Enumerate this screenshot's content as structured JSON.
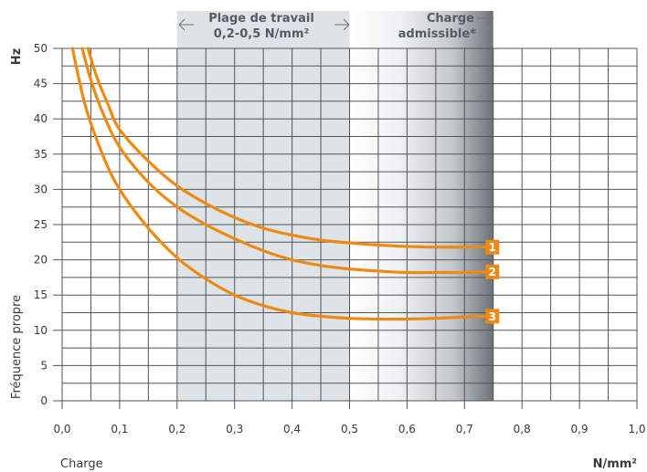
{
  "chart_data": {
    "type": "line",
    "xlabel": "Charge",
    "xunit": "N/mm²",
    "ylabel": "Fréquence propre",
    "yunit": "Hz",
    "xlim": [
      0,
      1.0
    ],
    "ylim": [
      0,
      50
    ],
    "x_ticks": [
      0,
      0.1,
      0.2,
      0.3,
      0.4,
      0.5,
      0.6,
      0.7,
      0.8,
      0.9,
      1.0
    ],
    "x_tick_labels": [
      "0,0",
      "0,1",
      "0,2",
      "0,3",
      "0,4",
      "0,5",
      "0,6",
      "0,7",
      "0,8",
      "0,9",
      "1,0"
    ],
    "y_ticks": [
      0,
      5,
      10,
      15,
      20,
      25,
      30,
      35,
      40,
      45,
      50
    ],
    "y_tick_labels": [
      "0",
      "5",
      "10",
      "15",
      "20",
      "25",
      "30",
      "35",
      "40",
      "45",
      "50"
    ],
    "grid": true,
    "working_range": {
      "from": 0.2,
      "to": 0.5,
      "label_line1": "Plage de travail",
      "label_line2": "0,2-0,5 N/mm²"
    },
    "admissible_load": {
      "from": 0.5,
      "to": 0.75,
      "label_line1": "Charge",
      "label_line2": "admissible*"
    },
    "series": [
      {
        "name": "1",
        "x": [
          0.045,
          0.06,
          0.08,
          0.1,
          0.15,
          0.2,
          0.25,
          0.3,
          0.35,
          0.4,
          0.45,
          0.5,
          0.55,
          0.6,
          0.65,
          0.7,
          0.735
        ],
        "y": [
          50,
          46,
          42,
          38.5,
          34,
          30.5,
          28,
          26,
          24.5,
          23.5,
          22.8,
          22.4,
          22.1,
          21.9,
          21.8,
          21.8,
          21.8
        ]
      },
      {
        "name": "2",
        "x": [
          0.035,
          0.05,
          0.07,
          0.1,
          0.15,
          0.2,
          0.25,
          0.3,
          0.35,
          0.4,
          0.45,
          0.5,
          0.55,
          0.6,
          0.65,
          0.7,
          0.735
        ],
        "y": [
          50,
          45.5,
          41,
          36,
          31,
          27.5,
          25,
          23,
          21.3,
          20,
          19.2,
          18.7,
          18.4,
          18.2,
          18.2,
          18.2,
          18.3
        ]
      },
      {
        "name": "3",
        "x": [
          0.018,
          0.04,
          0.07,
          0.1,
          0.15,
          0.2,
          0.25,
          0.3,
          0.35,
          0.4,
          0.45,
          0.5,
          0.55,
          0.6,
          0.65,
          0.7,
          0.735
        ],
        "y": [
          50,
          42,
          35,
          30,
          24.5,
          20.3,
          17.3,
          15,
          13.5,
          12.5,
          12,
          11.7,
          11.6,
          11.6,
          11.7,
          11.9,
          12
        ]
      }
    ],
    "colors": {
      "curve": "#ee8a12",
      "working_band": "#dde3e7",
      "grid": "#555555",
      "admissible_dark": "#73797f",
      "header_text": "#555b62"
    }
  }
}
